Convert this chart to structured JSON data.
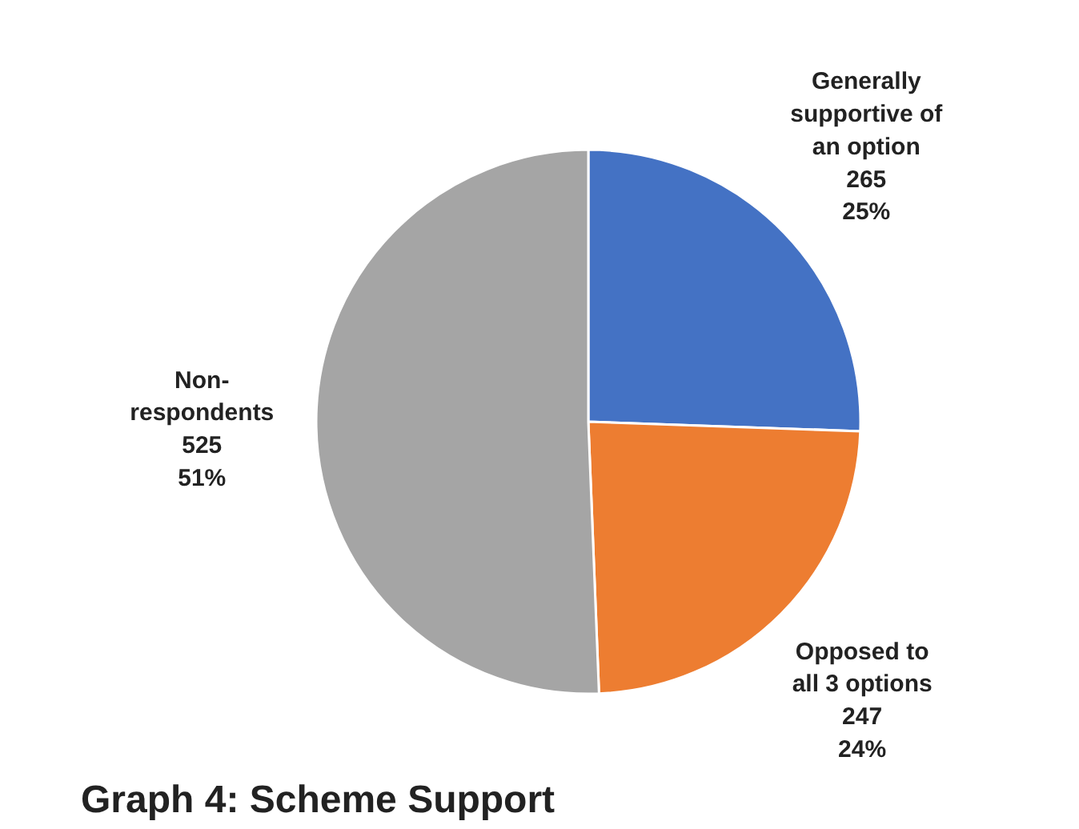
{
  "chart_data": {
    "type": "pie",
    "title": "Graph 4: Scheme Support",
    "categories": [
      "Generally supportive of an option",
      "Opposed to all 3 options",
      "Non-respondents"
    ],
    "values": [
      265,
      247,
      525
    ],
    "colors": [
      "#4472c4",
      "#ed7d31",
      "#a5a5a5"
    ],
    "value_labels": [
      "265\n25%",
      "247\n24%",
      "525\n51%"
    ]
  }
}
